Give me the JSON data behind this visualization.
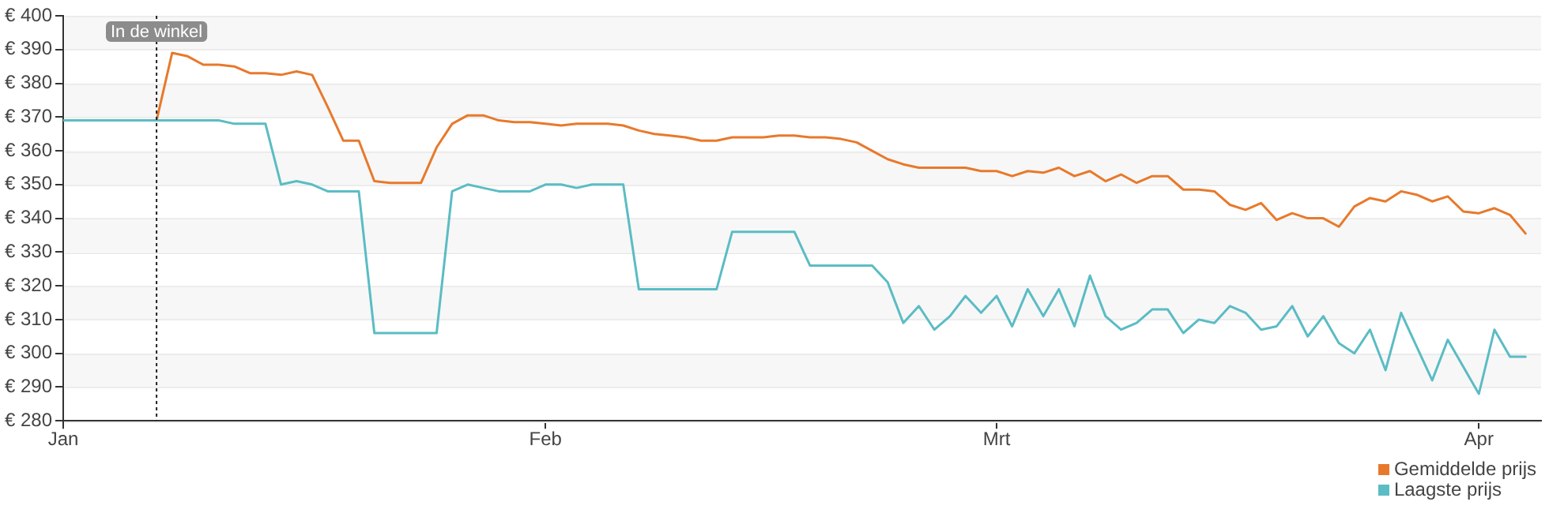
{
  "chart_data": {
    "type": "line",
    "x": [
      "--01-01",
      "--01-02",
      "--01-03",
      "--01-04",
      "--01-05",
      "--01-06",
      "--01-07",
      "--01-08",
      "--01-09",
      "--01-10",
      "--01-11",
      "--01-12",
      "--01-13",
      "--01-14",
      "--01-15",
      "--01-16",
      "--01-17",
      "--01-18",
      "--01-19",
      "--01-20",
      "--01-21",
      "--01-22",
      "--01-23",
      "--01-24",
      "--01-25",
      "--01-26",
      "--01-27",
      "--01-28",
      "--01-29",
      "--01-30",
      "--01-31",
      "--02-01",
      "--02-02",
      "--02-03",
      "--02-04",
      "--02-05",
      "--02-06",
      "--02-07",
      "--02-08",
      "--02-09",
      "--02-10",
      "--02-11",
      "--02-12",
      "--02-13",
      "--02-14",
      "--02-15",
      "--02-16",
      "--02-17",
      "--02-18",
      "--02-19",
      "--02-20",
      "--02-21",
      "--02-22",
      "--02-23",
      "--02-24",
      "--02-25",
      "--02-26",
      "--02-27",
      "--02-28",
      "--02-29",
      "--03-01",
      "--03-02",
      "--03-03",
      "--03-04",
      "--03-05",
      "--03-06",
      "--03-07",
      "--03-08",
      "--03-09",
      "--03-10",
      "--03-11",
      "--03-12",
      "--03-13",
      "--03-14",
      "--03-15",
      "--03-16",
      "--03-17",
      "--03-18",
      "--03-19",
      "--03-20",
      "--03-21",
      "--03-22",
      "--03-23",
      "--03-24",
      "--03-25",
      "--03-26",
      "--03-27",
      "--03-28",
      "--03-29",
      "--03-30",
      "--03-31",
      "--04-01",
      "--04-02",
      "--04-03",
      "--04-04"
    ],
    "series": [
      {
        "name": "Gemiddelde prijs",
        "color": "#e8792b",
        "values": [
          null,
          null,
          null,
          null,
          null,
          null,
          369,
          389,
          388,
          385.5,
          385.5,
          385,
          383,
          383,
          382.5,
          383.5,
          382.5,
          373,
          363,
          363,
          351,
          350.5,
          350.5,
          350.5,
          361,
          368,
          370.5,
          370.5,
          369,
          368.5,
          368.5,
          368,
          367.5,
          368,
          368,
          368,
          367.5,
          366,
          365,
          364.5,
          364,
          363,
          363,
          364,
          364,
          364,
          364.5,
          364.5,
          364,
          364,
          363.5,
          362.5,
          360,
          357.5,
          356,
          355,
          355,
          355,
          355,
          354,
          354,
          352.5,
          354,
          353.5,
          355,
          352.5,
          354,
          351,
          353,
          350.5,
          352.5,
          352.5,
          348.5,
          348.5,
          348,
          344,
          342.5,
          344.5,
          339.5,
          341.5,
          340,
          340,
          337.5,
          343.5,
          346,
          345,
          348,
          347,
          345,
          346.5,
          342,
          341.5,
          343,
          341,
          335.5
        ]
      },
      {
        "name": "Laagste prijs",
        "color": "#5bbcc4",
        "values": [
          369,
          369,
          369,
          369,
          369,
          369,
          369,
          369,
          369,
          369,
          369,
          368,
          368,
          368,
          350,
          351,
          350,
          348,
          348,
          348,
          306,
          306,
          306,
          306,
          306,
          348,
          350,
          349,
          348,
          348,
          348,
          350,
          350,
          349,
          350,
          350,
          350,
          319,
          319,
          319,
          319,
          319,
          319,
          336,
          336,
          336,
          336,
          336,
          326,
          326,
          326,
          326,
          326,
          321,
          309,
          314,
          307,
          311,
          317,
          312,
          317,
          308,
          319,
          311,
          319,
          308,
          323,
          311,
          307,
          309,
          313,
          313,
          306,
          310,
          309,
          314,
          312,
          307,
          308,
          314,
          305,
          311,
          303,
          300,
          307,
          295,
          312,
          302,
          292,
          304,
          296,
          288,
          307,
          299,
          299
        ]
      }
    ],
    "xlim": [
      "--01-01",
      "--04-05"
    ],
    "xticks": [
      {
        "value": "--01-01",
        "label": "Jan"
      },
      {
        "value": "--02-01",
        "label": "Feb"
      },
      {
        "value": "--03-01",
        "label": "Mrt"
      },
      {
        "value": "--04-01",
        "label": "Apr"
      }
    ],
    "ylim": [
      280,
      400
    ],
    "yticks": [
      {
        "value": 280,
        "label": "€ 280"
      },
      {
        "value": 290,
        "label": "€ 290"
      },
      {
        "value": 300,
        "label": "€ 300"
      },
      {
        "value": 310,
        "label": "€ 310"
      },
      {
        "value": 320,
        "label": "€ 320"
      },
      {
        "value": 330,
        "label": "€ 330"
      },
      {
        "value": 340,
        "label": "€ 340"
      },
      {
        "value": 350,
        "label": "€ 350"
      },
      {
        "value": 360,
        "label": "€ 360"
      },
      {
        "value": 370,
        "label": "€ 370"
      },
      {
        "value": 380,
        "label": "€ 380"
      },
      {
        "value": 390,
        "label": "€ 390"
      },
      {
        "value": 400,
        "label": "€ 400"
      }
    ],
    "ref_lines": [
      {
        "axis": "x",
        "value": "--01-07",
        "label": "In de winkel",
        "color": "#222222",
        "line_style": "dotted"
      }
    ],
    "grid": "y",
    "legend": "bottom right",
    "marker": "none",
    "line_style": "solid"
  }
}
